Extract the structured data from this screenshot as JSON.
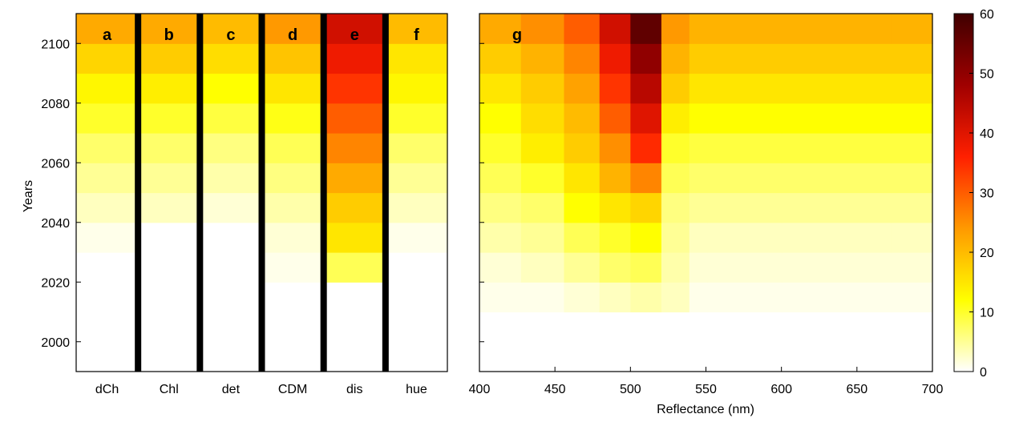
{
  "chart_data": [
    {
      "id": "panels_a_to_f",
      "type": "heatmap",
      "ylabel": "Years",
      "yticks": [
        2000,
        2020,
        2040,
        2060,
        2080,
        2100
      ],
      "ylim": [
        1990,
        2110
      ],
      "columns": [
        {
          "letter": "a",
          "label": "dCh"
        },
        {
          "letter": "b",
          "label": "Chl"
        },
        {
          "letter": "c",
          "label": "det"
        },
        {
          "letter": "d",
          "label": "CDM"
        },
        {
          "letter": "e",
          "label": "dis"
        },
        {
          "letter": "f",
          "label": "hue"
        }
      ],
      "row_years": [
        1995,
        2005,
        2015,
        2025,
        2035,
        2045,
        2055,
        2065,
        2075,
        2085,
        2095,
        2105
      ],
      "values": [
        [
          0,
          0,
          0,
          0,
          0,
          0
        ],
        [
          0,
          0,
          0,
          0,
          0,
          0
        ],
        [
          0,
          0,
          0,
          0,
          0,
          0
        ],
        [
          0,
          0,
          0,
          1,
          8,
          0
        ],
        [
          1,
          0,
          0,
          2,
          15,
          1
        ],
        [
          3,
          3,
          2,
          4,
          18,
          3
        ],
        [
          5,
          5,
          4,
          6,
          22,
          5
        ],
        [
          7,
          7,
          6,
          8,
          26,
          7
        ],
        [
          10,
          10,
          9,
          11,
          30,
          10
        ],
        [
          13,
          14,
          12,
          15,
          34,
          13
        ],
        [
          17,
          18,
          16,
          19,
          38,
          15
        ],
        [
          22,
          22,
          20,
          24,
          42,
          20
        ]
      ]
    },
    {
      "id": "panel_g",
      "type": "heatmap",
      "letter": "g",
      "xlabel": "Reflectance (nm)",
      "xticks": [
        400,
        450,
        500,
        550,
        600,
        650,
        700
      ],
      "xlim": [
        400,
        700
      ],
      "ylim": [
        1990,
        2110
      ],
      "x_bins": [
        412,
        443,
        469,
        490,
        510,
        531,
        547,
        555,
        645,
        667,
        678,
        700
      ],
      "row_years": [
        1995,
        2005,
        2015,
        2025,
        2035,
        2045,
        2055,
        2065,
        2075,
        2085,
        2095,
        2105
      ],
      "values": [
        [
          0,
          0,
          0,
          0,
          0,
          0,
          0,
          0,
          0,
          0,
          0,
          0
        ],
        [
          0,
          0,
          0,
          0,
          0,
          0,
          0,
          0,
          0,
          0,
          0,
          0
        ],
        [
          1,
          1,
          2,
          3,
          4,
          3,
          1,
          1,
          1,
          1,
          1,
          1
        ],
        [
          2,
          3,
          5,
          7,
          8,
          4,
          2,
          2,
          2,
          2,
          2,
          2
        ],
        [
          4,
          5,
          8,
          10,
          12,
          5,
          3,
          3,
          3,
          3,
          3,
          3
        ],
        [
          6,
          7,
          12,
          15,
          17,
          6,
          5,
          5,
          5,
          5,
          5,
          5
        ],
        [
          8,
          10,
          15,
          21,
          26,
          8,
          7,
          7,
          7,
          7,
          7,
          7
        ],
        [
          10,
          14,
          18,
          25,
          35,
          10,
          9,
          9,
          9,
          9,
          9,
          9
        ],
        [
          12,
          16,
          20,
          30,
          40,
          14,
          12,
          12,
          12,
          12,
          12,
          12
        ],
        [
          15,
          18,
          23,
          34,
          45,
          18,
          15,
          15,
          15,
          15,
          15,
          15
        ],
        [
          18,
          21,
          26,
          38,
          50,
          21,
          18,
          18,
          18,
          18,
          18,
          18
        ],
        [
          22,
          25,
          30,
          42,
          56,
          24,
          21,
          21,
          21,
          21,
          21,
          21
        ]
      ]
    },
    {
      "id": "colorbar",
      "type": "colorbar",
      "range": [
        0,
        60
      ],
      "ticks": [
        0,
        10,
        20,
        30,
        40,
        50,
        60
      ],
      "colormap": "hot-reversed",
      "colors": [
        "#ffffff",
        "#ffff00",
        "#ff9900",
        "#ff2000",
        "#a00000",
        "#400000"
      ]
    }
  ]
}
